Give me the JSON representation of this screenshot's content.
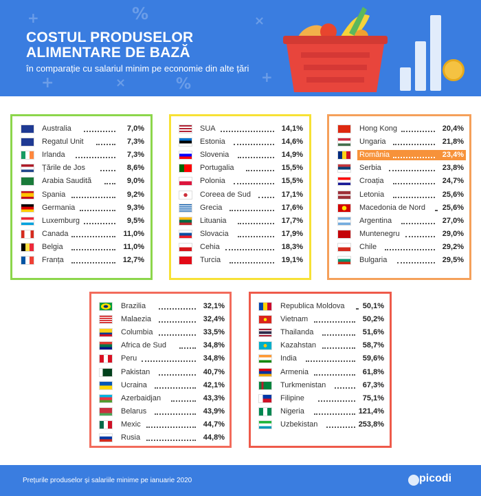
{
  "header": {
    "title_line1": "COSTUL PRODUSELOR",
    "title_line2": "ALIMENTARE DE BAZĂ",
    "subtitle": "în comparație cu salariul minim pe economie din alte țări"
  },
  "colors": {
    "header_bg": "#3a7de0",
    "green": "#8cd64b",
    "yellow": "#f7e135",
    "orange": "#f5a05a",
    "coral": "#f26b5b",
    "red": "#ee5a4a",
    "highlight": "#f7923a"
  },
  "panels": [
    {
      "id": "green",
      "items": [
        {
          "country": "Australia",
          "pct": "7,0%",
          "flag": "australia"
        },
        {
          "country": "Regatul Unit",
          "pct": "7,3%",
          "flag": "uk"
        },
        {
          "country": "Irlanda",
          "pct": "7,3%",
          "flag": "ireland"
        },
        {
          "country": "Țările de Jos",
          "pct": "8,6%",
          "flag": "netherlands"
        },
        {
          "country": "Arabia Saudită",
          "pct": "9,0%",
          "flag": "saudi"
        },
        {
          "country": "Spania",
          "pct": "9,2%",
          "flag": "spain"
        },
        {
          "country": "Germania",
          "pct": "9,3%",
          "flag": "germany"
        },
        {
          "country": "Luxemburg",
          "pct": "9,5%",
          "flag": "luxembourg"
        },
        {
          "country": "Canada",
          "pct": "11,0%",
          "flag": "canada"
        },
        {
          "country": "Belgia",
          "pct": "11,0%",
          "flag": "belgium"
        },
        {
          "country": "Franța",
          "pct": "12,7%",
          "flag": "france"
        }
      ]
    },
    {
      "id": "yellow",
      "items": [
        {
          "country": "SUA",
          "pct": "14,1%",
          "flag": "usa"
        },
        {
          "country": "Estonia",
          "pct": "14,6%",
          "flag": "estonia"
        },
        {
          "country": "Slovenia",
          "pct": "14,9%",
          "flag": "slovenia"
        },
        {
          "country": "Portugalia",
          "pct": "15,5%",
          "flag": "portugal"
        },
        {
          "country": "Polonia",
          "pct": "15,5%",
          "flag": "poland"
        },
        {
          "country": "Coreea de Sud",
          "pct": "17,1%",
          "flag": "korea"
        },
        {
          "country": "Grecia",
          "pct": "17,6%",
          "flag": "greece"
        },
        {
          "country": "Lituania",
          "pct": "17,7%",
          "flag": "lithuania"
        },
        {
          "country": "Slovacia",
          "pct": "17,9%",
          "flag": "slovakia"
        },
        {
          "country": "Cehia",
          "pct": "18,3%",
          "flag": "czech"
        },
        {
          "country": "Turcia",
          "pct": "19,1%",
          "flag": "turkey"
        }
      ]
    },
    {
      "id": "orange",
      "items": [
        {
          "country": "Hong Kong",
          "pct": "20,4%",
          "flag": "hongkong"
        },
        {
          "country": "Ungaria",
          "pct": "21,8%",
          "flag": "hungary"
        },
        {
          "country": "România",
          "pct": "23,4%",
          "flag": "romania",
          "highlight": true
        },
        {
          "country": "Serbia",
          "pct": "23,8%",
          "flag": "serbia"
        },
        {
          "country": "Croația",
          "pct": "24,7%",
          "flag": "croatia"
        },
        {
          "country": "Letonia",
          "pct": "25,6%",
          "flag": "latvia"
        },
        {
          "country": "Macedonia de Nord",
          "pct": "25,6%",
          "flag": "macedonia"
        },
        {
          "country": "Argentina",
          "pct": "27,0%",
          "flag": "argentina"
        },
        {
          "country": "Muntenegru",
          "pct": "29,0%",
          "flag": "montenegro"
        },
        {
          "country": "Chile",
          "pct": "29,2%",
          "flag": "chile"
        },
        {
          "country": "Bulgaria",
          "pct": "29,5%",
          "flag": "bulgaria"
        }
      ]
    },
    {
      "id": "coral",
      "items": [
        {
          "country": "Brazilia",
          "pct": "32,1%",
          "flag": "brazil"
        },
        {
          "country": "Malaezia",
          "pct": "32,4%",
          "flag": "malaysia"
        },
        {
          "country": "Columbia",
          "pct": "33,5%",
          "flag": "colombia"
        },
        {
          "country": "Africa de Sud",
          "pct": "34,8%",
          "flag": "southafrica"
        },
        {
          "country": "Peru",
          "pct": "34,8%",
          "flag": "peru"
        },
        {
          "country": "Pakistan",
          "pct": "40,7%",
          "flag": "pakistan"
        },
        {
          "country": "Ucraina",
          "pct": "42,1%",
          "flag": "ukraine"
        },
        {
          "country": "Azerbaidjan",
          "pct": "43,3%",
          "flag": "azerbaijan"
        },
        {
          "country": "Belarus",
          "pct": "43,9%",
          "flag": "belarus"
        },
        {
          "country": "Mexic",
          "pct": "44,7%",
          "flag": "mexico"
        },
        {
          "country": "Rusia",
          "pct": "44,8%",
          "flag": "russia"
        }
      ]
    },
    {
      "id": "red",
      "items": [
        {
          "country": "Republica Moldova",
          "pct": "50,1%",
          "flag": "moldova"
        },
        {
          "country": "Vietnam",
          "pct": "50,2%",
          "flag": "vietnam"
        },
        {
          "country": "Thailanda",
          "pct": "51,6%",
          "flag": "thailand"
        },
        {
          "country": "Kazahstan",
          "pct": "58,7%",
          "flag": "kazakhstan"
        },
        {
          "country": "India",
          "pct": "59,6%",
          "flag": "india"
        },
        {
          "country": "Armenia",
          "pct": "61,8%",
          "flag": "armenia"
        },
        {
          "country": "Turkmenistan",
          "pct": "67,3%",
          "flag": "turkmenistan"
        },
        {
          "country": "Filipine",
          "pct": "75,1%",
          "flag": "philippines"
        },
        {
          "country": "Nigeria",
          "pct": "121,4%",
          "flag": "nigeria"
        },
        {
          "country": "Uzbekistan",
          "pct": "253,8%",
          "flag": "uzbekistan"
        }
      ]
    }
  ],
  "footer": {
    "note": "Prețurile produselor și salariile minime pe ianuarie 2020",
    "logo": "picodi"
  }
}
